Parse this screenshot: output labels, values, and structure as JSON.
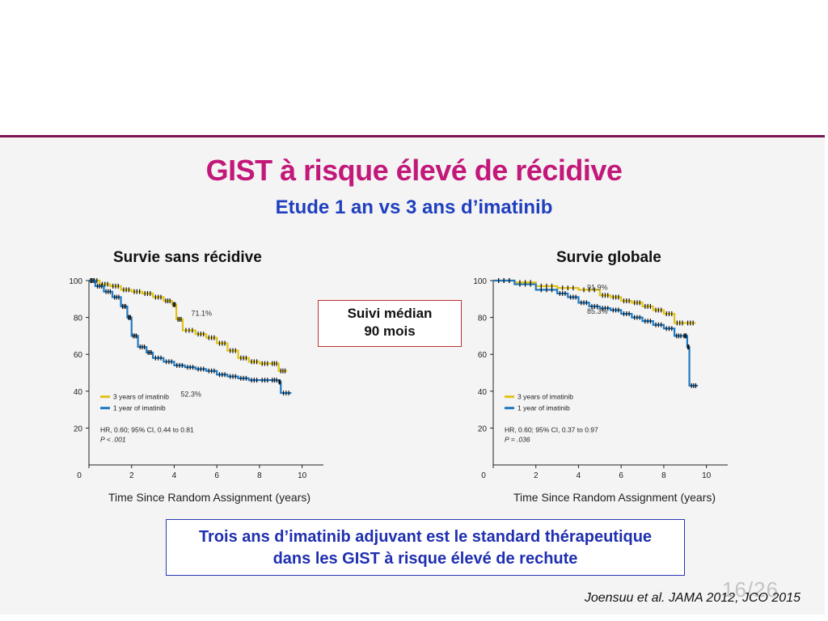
{
  "slide": {
    "title": "GIST à risque élevé de récidive",
    "subtitle": "Etude 1 an vs 3 ans d’imatinib",
    "boxes": {
      "suivi_line1": "Suivi médian",
      "suivi_line2": "90 mois"
    },
    "conclusion_line1": "Trois ans d’imatinib adjuvant est le standard thérapeutique",
    "conclusion_line2": "dans les GIST à risque élevé de rechute",
    "reference": "Joensuu et al. JAMA 2012, JCO 2015",
    "page_number": "16/26"
  },
  "colors": {
    "series_3y": "#e0c21a",
    "series_1y": "#1f7ac4",
    "title": "#c2187a",
    "subtitle": "#1f3fbf"
  },
  "chart_data": [
    {
      "type": "line",
      "title": "Survie sans récidive",
      "xlabel": "Time Since Random Assignment (years)",
      "ylabel": "",
      "xlim": [
        0,
        11
      ],
      "ylim": [
        0,
        100
      ],
      "xticks": [
        0,
        2,
        4,
        6,
        8,
        10
      ],
      "yticks": [
        20,
        40,
        60,
        80,
        100
      ],
      "legend": [
        "3 years of imatinib",
        "1 year of imatinib"
      ],
      "stats_line1": "HR, 0.60; 95% CI, 0.44 to 0.81",
      "stats_line2": "P < .001",
      "annotations": [
        {
          "text": "71.1%",
          "x": 4.8,
          "y": 81
        },
        {
          "text": "52.3%",
          "x": 4.3,
          "y": 37
        }
      ],
      "series": [
        {
          "name": "3 years of imatinib",
          "x": [
            0,
            0.5,
            1,
            1.5,
            2,
            2.5,
            3,
            3.5,
            3.9,
            4.1,
            4.4,
            5,
            5.5,
            6,
            6.5,
            7,
            7.5,
            8,
            8.5,
            8.9,
            9.3
          ],
          "y": [
            100,
            98,
            97,
            95,
            94,
            93,
            91,
            89,
            87,
            79,
            73,
            71,
            69,
            66,
            62,
            58,
            56,
            55,
            55,
            51,
            51
          ]
        },
        {
          "name": "1 year of imatinib",
          "x": [
            0,
            0.3,
            0.7,
            1.1,
            1.5,
            1.8,
            2,
            2.3,
            2.7,
            3,
            3.5,
            4,
            4.5,
            5,
            5.5,
            6,
            6.5,
            7,
            7.5,
            8,
            8.5,
            8.9,
            9,
            9.5
          ],
          "y": [
            100,
            97,
            94,
            91,
            86,
            80,
            70,
            64,
            61,
            58,
            56,
            54,
            53,
            52,
            51,
            49,
            48,
            47,
            46,
            46,
            46,
            45,
            39,
            39
          ]
        }
      ]
    },
    {
      "type": "line",
      "title": "Survie globale",
      "xlabel": "Time Since Random Assignment (years)",
      "ylabel": "",
      "xlim": [
        0,
        11
      ],
      "ylim": [
        0,
        100
      ],
      "xticks": [
        0,
        2,
        4,
        6,
        8,
        10
      ],
      "yticks": [
        20,
        40,
        60,
        80,
        100
      ],
      "legend": [
        "3 years of imatinib",
        "1 year of imatinib"
      ],
      "stats_line1": "HR, 0.60; 95% CI, 0.37 to 0.97",
      "stats_line2": "P = .036",
      "annotations": [
        {
          "text": "91.9%",
          "x": 4.4,
          "y": 95
        },
        {
          "text": "85.3%",
          "x": 4.4,
          "y": 82
        }
      ],
      "series": [
        {
          "name": "3 years of imatinib",
          "x": [
            0,
            1,
            2,
            3,
            4,
            5,
            5.5,
            6,
            6.5,
            7,
            7.5,
            8,
            8.5,
            9,
            9.5
          ],
          "y": [
            100,
            99,
            97,
            96,
            95,
            92,
            91,
            89,
            88,
            86,
            84,
            82,
            77,
            77,
            77
          ]
        },
        {
          "name": "1 year of imatinib",
          "x": [
            0,
            1,
            2,
            3,
            3.5,
            4,
            4.5,
            5,
            5.5,
            6,
            6.5,
            7,
            7.5,
            8,
            8.5,
            8.9,
            9.1,
            9.2,
            9.6
          ],
          "y": [
            100,
            98,
            95,
            93,
            91,
            88,
            86,
            85,
            84,
            82,
            80,
            78,
            76,
            74,
            70,
            70,
            64,
            43,
            43
          ]
        }
      ]
    }
  ]
}
